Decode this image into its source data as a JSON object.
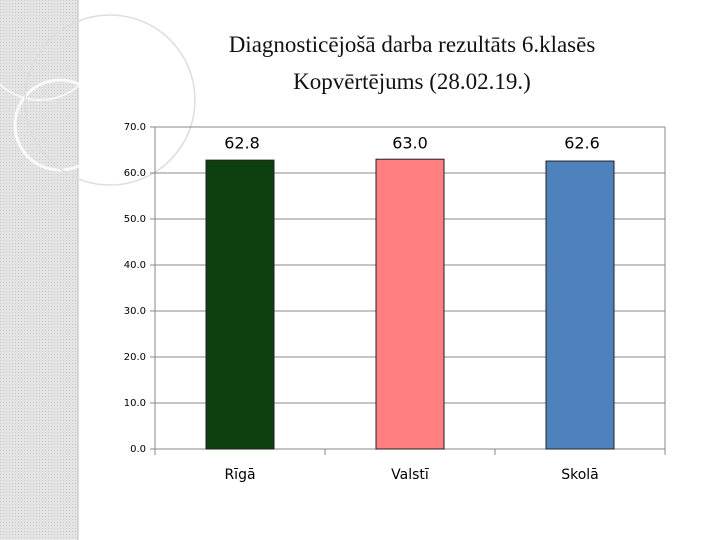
{
  "chart_data": {
    "type": "bar",
    "title": "Diagnosticējošā darba rezultāts 6.klasēs",
    "subtitle": "Kopvērtējums (28.02.19.)",
    "categories": [
      "Rīgā",
      "Valstī",
      "Skolā"
    ],
    "values": [
      62.8,
      63.0,
      62.6
    ],
    "value_labels": [
      "62.8",
      "63.0",
      "62.6"
    ],
    "colors": [
      "#0e3f0e",
      "#ff7f80",
      "#4f81bd"
    ],
    "ylim": [
      0,
      70
    ],
    "yticks": [
      {
        "value": 0,
        "label": "0.0"
      },
      {
        "value": 10,
        "label": "10.0"
      },
      {
        "value": 20,
        "label": "20.0"
      },
      {
        "value": 30,
        "label": "30.0"
      },
      {
        "value": 40,
        "label": "40.0"
      },
      {
        "value": 50,
        "label": "50.0"
      },
      {
        "value": 60,
        "label": "60.0"
      },
      {
        "value": 70,
        "label": "70.0"
      }
    ],
    "grid": true
  }
}
